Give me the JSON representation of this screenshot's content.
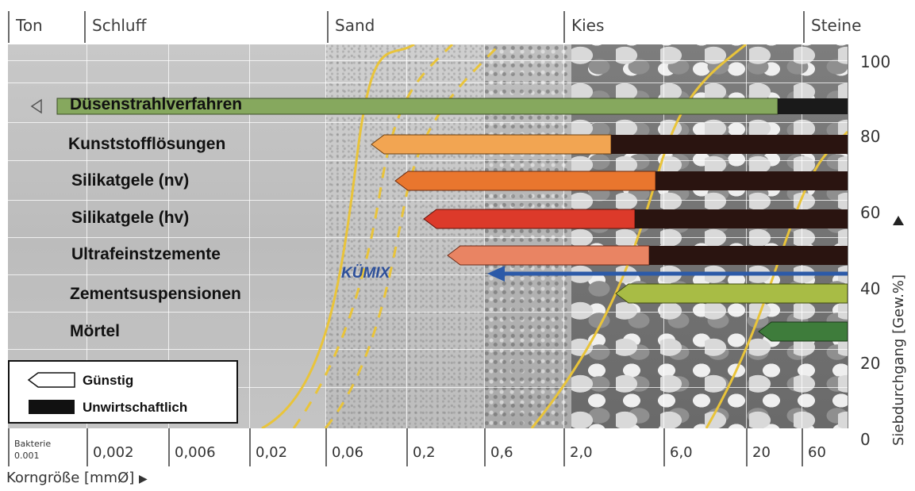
{
  "header": {
    "classes": [
      "Ton",
      "Schluff",
      "Sand",
      "Kies",
      "Steine"
    ]
  },
  "methods": [
    {
      "label": "Düsenstrahlverfahren",
      "color": "#86a85e",
      "favorable_from": "0,002",
      "uneconomic_from": "20"
    },
    {
      "label": "Kunststofflösungen",
      "color": "#f2a552",
      "favorable_from": "0,06",
      "uneconomic_from": "2,0"
    },
    {
      "label": "Silikatgele (nv)",
      "color": "#e9762e",
      "favorable_from": "0,2",
      "uneconomic_from": "6,0"
    },
    {
      "label": "Silikatgele (hv)",
      "color": "#dc3a2a",
      "favorable_from": "0,2",
      "uneconomic_from": "6,0"
    },
    {
      "label": "Ultrafeinstzemente",
      "color": "#e98463",
      "favorable_from": "0,2",
      "uneconomic_from": "6,0"
    },
    {
      "label": "Zementsuspensionen",
      "color": "#a8bc45",
      "favorable_from": "2,0"
    },
    {
      "label": "Mörtel",
      "color": "#3e7c3b",
      "favorable_from": "20"
    }
  ],
  "kumix": {
    "label": "KÜMIX",
    "color": "#2c5aa8"
  },
  "y_axis": {
    "title": "Siebdurchgang [Gew.%]",
    "ticks": [
      "100",
      "80",
      "60",
      "40",
      "20",
      "0"
    ]
  },
  "x_axis": {
    "title": "Korngröße [mmØ]",
    "first_label_line1": "Bakterie",
    "first_label_line2": "0.001",
    "ticks": [
      "0,002",
      "0,006",
      "0,02",
      "0,06",
      "0,2",
      "0,6",
      "2,0",
      "6,0",
      "20",
      "60"
    ]
  },
  "legend": {
    "favorable": "Günstig",
    "uneconomic": "Unwirtschaftlich"
  }
}
